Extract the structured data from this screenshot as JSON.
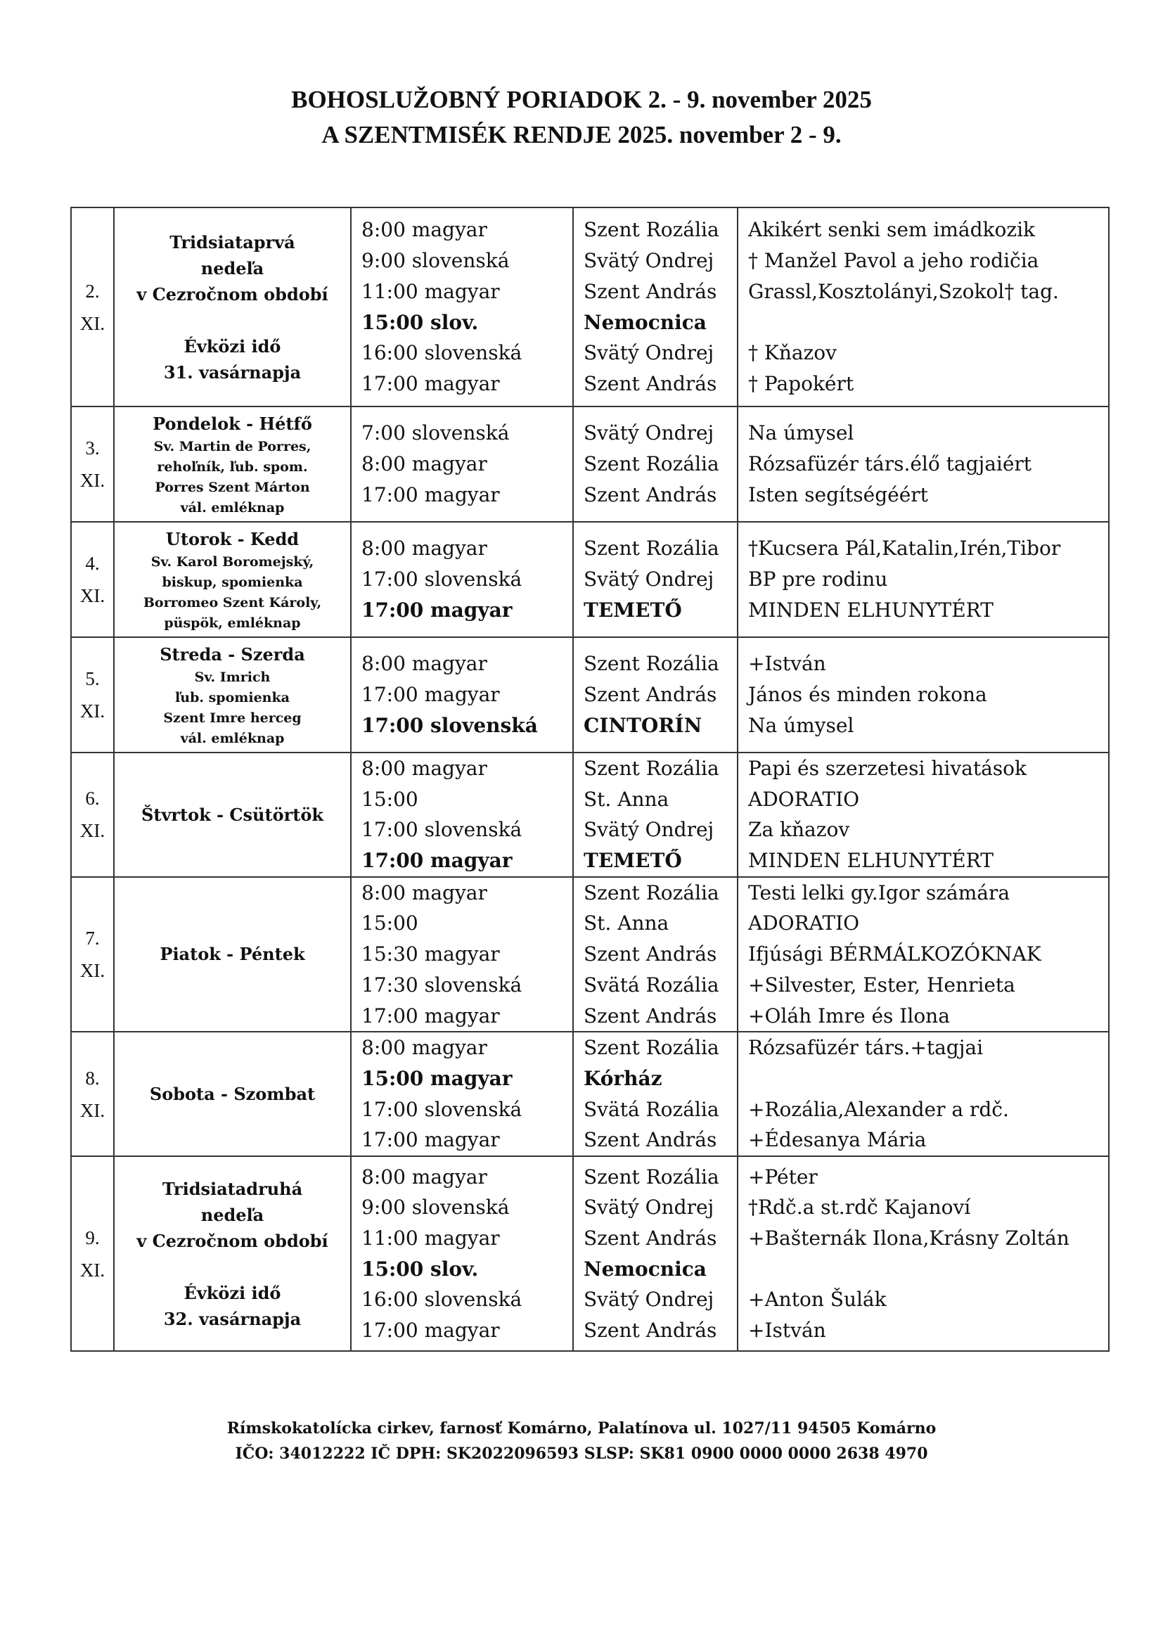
{
  "header": {
    "title_sk": "BOHOSLUŽOBNÝ PORIADOK  2. - 9. november 2025",
    "title_hu": "A  SZENTMISÉK RENDJE  2025. november 2 - 9."
  },
  "rows": [
    {
      "date": [
        "2.",
        "XI."
      ],
      "day_title": [
        "Tridsiataprvá",
        "nedeľa",
        "v Cezročnom období",
        "",
        "Évközi idő",
        "31. vasárnapja"
      ],
      "day_sub": [],
      "times": [
        {
          "t": "8:00 magyar"
        },
        {
          "t": "9:00 slovenská"
        },
        {
          "t": "11:00 magyar"
        },
        {
          "t": "15:00 slov.",
          "b": true
        },
        {
          "t": "16:00 slovenská"
        },
        {
          "t": "17:00 magyar"
        }
      ],
      "places": [
        {
          "t": "Szent Rozália"
        },
        {
          "t": "Svätý Ondrej"
        },
        {
          "t": "Szent András"
        },
        {
          "t": "Nemocnica",
          "b": true
        },
        {
          "t": "Svätý Ondrej"
        },
        {
          "t": "Szent András"
        }
      ],
      "intentions": [
        {
          "t": "Akikért senki sem imádkozik"
        },
        {
          "t": "† Manžel Pavol a jeho rodičia"
        },
        {
          "t": "Grassl,Kosztolányi,Szokol† tag."
        },
        {
          "t": ""
        },
        {
          "t": "† Kňazov"
        },
        {
          "t": "† Papokért"
        }
      ]
    },
    {
      "date": [
        "3.",
        "XI."
      ],
      "day_title": [
        "Pondelok - Hétfő"
      ],
      "day_sub": [
        "Sv. Martin de Porres,",
        "rehoľník, ľub. spom.",
        "Porres Szent Márton",
        "vál. emléknap"
      ],
      "times": [
        {
          "t": "7:00 slovenská"
        },
        {
          "t": "8:00 magyar"
        },
        {
          "t": "17:00 magyar"
        }
      ],
      "places": [
        {
          "t": "Svätý Ondrej"
        },
        {
          "t": "Szent Rozália"
        },
        {
          "t": "Szent András"
        }
      ],
      "intentions": [
        {
          "t": "Na úmysel"
        },
        {
          "t": "Rózsafüzér társ.élő tagjaiért"
        },
        {
          "t": "Isten segítségéért"
        }
      ]
    },
    {
      "date": [
        "4.",
        "XI."
      ],
      "day_title": [
        "Utorok - Kedd"
      ],
      "day_sub": [
        "Sv. Karol Boromejský,",
        "biskup, spomienka",
        "Borromeo Szent Károly,",
        "püspök, emléknap"
      ],
      "times": [
        {
          "t": "8:00 magyar"
        },
        {
          "t": "17:00 slovenská"
        },
        {
          "t": "17:00 magyar",
          "b": true
        }
      ],
      "places": [
        {
          "t": "Szent Rozália"
        },
        {
          "t": "Svätý Ondrej"
        },
        {
          "t": "TEMETŐ",
          "b": true
        }
      ],
      "intentions": [
        {
          "t": "†Kucsera Pál,Katalin,Irén,Tibor"
        },
        {
          "t": "BP pre rodinu"
        },
        {
          "t": "MINDEN ELHUNYTÉRT"
        }
      ]
    },
    {
      "date": [
        "5.",
        "XI."
      ],
      "day_title": [
        "Streda - Szerda"
      ],
      "day_sub": [
        "Sv. Imrich",
        "ľub. spomienka",
        "Szent Imre herceg",
        "vál. emléknap"
      ],
      "times": [
        {
          "t": "8:00 magyar"
        },
        {
          "t": "17:00 magyar"
        },
        {
          "t": "17:00 slovenská",
          "b": true
        }
      ],
      "places": [
        {
          "t": "Szent Rozália"
        },
        {
          "t": "Szent András"
        },
        {
          "t": "CINTORÍN",
          "b": true
        }
      ],
      "intentions": [
        {
          "t": "+István"
        },
        {
          "t": "János és minden rokona"
        },
        {
          "t": "Na úmysel"
        }
      ]
    },
    {
      "date": [
        "6.",
        "XI."
      ],
      "day_title": [
        "Štvrtok  - Csütörtök"
      ],
      "day_sub": [],
      "times": [
        {
          "t": "8:00 magyar"
        },
        {
          "t": "15:00"
        },
        {
          "t": "17:00 slovenská"
        },
        {
          "t": "17:00 magyar",
          "b": true
        }
      ],
      "places": [
        {
          "t": "Szent Rozália"
        },
        {
          "t": "St. Anna"
        },
        {
          "t": "Svätý Ondrej"
        },
        {
          "t": "TEMETŐ",
          "b": true
        }
      ],
      "intentions": [
        {
          "t": "Papi és szerzetesi hivatások"
        },
        {
          "t": "ADORATIO"
        },
        {
          "t": "Za kňazov"
        },
        {
          "t": "MINDEN ELHUNYTÉRT"
        }
      ]
    },
    {
      "date": [
        "7.",
        "XI."
      ],
      "day_title": [
        "Piatok - Péntek"
      ],
      "day_sub": [],
      "times": [
        {
          "t": "8:00 magyar"
        },
        {
          "t": "15:00"
        },
        {
          "t": "15:30 magyar"
        },
        {
          "t": "17:30 slovenská"
        },
        {
          "t": "17:00 magyar"
        }
      ],
      "places": [
        {
          "t": "Szent Rozália"
        },
        {
          "t": "St. Anna"
        },
        {
          "t": "Szent András"
        },
        {
          "t": "Svätá Rozália"
        },
        {
          "t": "Szent András"
        }
      ],
      "intentions": [
        {
          "t": "Testi lelki gy.Igor számára"
        },
        {
          "t": "ADORATIO"
        },
        {
          "t": "Ifjúsági BÉRMÁLKOZÓKNAK"
        },
        {
          "t": "+Silvester, Ester, Henrieta"
        },
        {
          "t": "+Oláh Imre és Ilona"
        }
      ]
    },
    {
      "date": [
        "8.",
        "XI."
      ],
      "day_title": [
        "Sobota - Szombat"
      ],
      "day_sub": [],
      "times": [
        {
          "t": "8:00 magyar"
        },
        {
          "t": "15:00 magyar",
          "b": true
        },
        {
          "t": "17:00 slovenská"
        },
        {
          "t": "17:00 magyar"
        }
      ],
      "places": [
        {
          "t": "Szent Rozália"
        },
        {
          "t": "Kórház",
          "b": true
        },
        {
          "t": "Svätá Rozália"
        },
        {
          "t": "Szent András"
        }
      ],
      "intentions": [
        {
          "t": "Rózsafüzér társ.+tagjai"
        },
        {
          "t": ""
        },
        {
          "t": "+Rozália,Alexander a rdč."
        },
        {
          "t": " +Édesanya Mária"
        }
      ]
    },
    {
      "date": [
        "9.",
        "XI."
      ],
      "day_title": [
        "Tridsiatadruhá",
        "nedeľa",
        "v Cezročnom období",
        "",
        "Évközi idő",
        "32. vasárnapja"
      ],
      "day_sub": [],
      "times": [
        {
          "t": "8:00 magyar"
        },
        {
          "t": "9:00 slovenská"
        },
        {
          "t": "11:00 magyar"
        },
        {
          "t": "15:00 slov.",
          "b": true
        },
        {
          "t": "16:00 slovenská"
        },
        {
          "t": "17:00 magyar"
        }
      ],
      "places": [
        {
          "t": "Szent Rozália"
        },
        {
          "t": "Svätý Ondrej"
        },
        {
          "t": "Szent András"
        },
        {
          "t": "Nemocnica",
          "b": true
        },
        {
          "t": "Svätý Ondrej"
        },
        {
          "t": "Szent András"
        }
      ],
      "intentions": [
        {
          "t": "+Péter"
        },
        {
          "t": "†Rdč.a st.rdč Kajanoví"
        },
        {
          "t": "+Bašternák Ilona,Krásny Zoltán"
        },
        {
          "t": ""
        },
        {
          "t": "+Anton Šulák"
        },
        {
          "t": "+István"
        }
      ]
    }
  ],
  "footer": {
    "line1": "Rímskokatolícka cirkev, farnosť Komárno, Palatínova ul. 1027/11 94505 Komárno",
    "line2": "IČO: 34012222 IČ DPH: SK2022096593 SLSP: SK81 0900 0000 0000 2638 4970"
  }
}
